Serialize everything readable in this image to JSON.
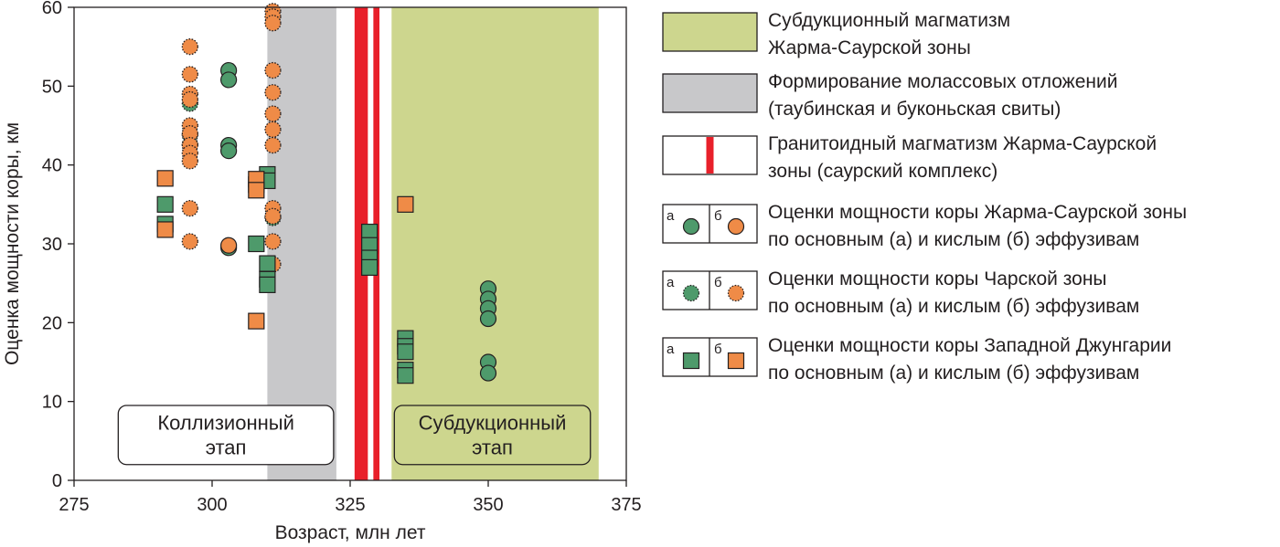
{
  "chart_data": {
    "type": "scatter",
    "xlabel": "Возраст, млн лет",
    "ylabel": "Оценка мощности коры, км",
    "xlim": [
      275,
      375
    ],
    "ylim": [
      0,
      60
    ],
    "xticks": [
      275,
      300,
      325,
      350,
      375
    ],
    "yticks": [
      0,
      10,
      20,
      30,
      40,
      50,
      60
    ],
    "grid": false,
    "legend_position": "right",
    "bands": [
      {
        "name": "molasse",
        "x_start": 310,
        "x_end": 322.5,
        "color": "#c8c8ca"
      },
      {
        "name": "subduction",
        "x_start": 332.5,
        "x_end": 370,
        "color": "#cdd68e"
      },
      {
        "name": "granitoid-1",
        "x_start": 325.8,
        "x_end": 328.2,
        "color": "#e8202a"
      },
      {
        "name": "granitoid-2",
        "x_start": 329.2,
        "x_end": 330.3,
        "color": "#e8202a"
      }
    ],
    "stage_labels": [
      {
        "text": "Коллизионный этап",
        "x_start": 283,
        "x_end": 322,
        "y_start": 2,
        "y_end": 9.5,
        "fill": "#ffffff"
      },
      {
        "text": "Субдукционный этап",
        "x_start": 333,
        "x_end": 368.5,
        "y_start": 2,
        "y_end": 9.5,
        "fill": "#cdd68e"
      }
    ],
    "colors": {
      "basic": "#4e9a6b",
      "acid": "#ef8b47",
      "red": "#e8202a",
      "molasse": "#c8c8ca",
      "subduction": "#cdd68e"
    },
    "series": [
      {
        "name": "Жарма-Саурская зона, основные (а)",
        "marker": "circle",
        "fill": "#4e9a6b",
        "outline": "solid",
        "points": [
          [
            303,
            52
          ],
          [
            303,
            50.8
          ],
          [
            303,
            42.5
          ],
          [
            303,
            41.8
          ],
          [
            303,
            29.5
          ],
          [
            350,
            24.3
          ],
          [
            350,
            23
          ],
          [
            350,
            21.8
          ],
          [
            350,
            20.5
          ],
          [
            350,
            15
          ],
          [
            350,
            13.6
          ]
        ]
      },
      {
        "name": "Жарма-Саурская зона, кислые (б)",
        "marker": "circle",
        "fill": "#ef8b47",
        "outline": "solid",
        "points": [
          [
            303,
            29.8
          ]
        ]
      },
      {
        "name": "Чарская зона, основные (а)",
        "marker": "circle",
        "fill": "#4e9a6b",
        "outline": "dotted",
        "points": [
          [
            296,
            47.8
          ],
          [
            296,
            43.8
          ],
          [
            296,
            42.6
          ],
          [
            311,
            33.3
          ]
        ]
      },
      {
        "name": "Чарская зона, кислые (б)",
        "marker": "circle",
        "fill": "#ef8b47",
        "outline": "dotted",
        "points": [
          [
            296,
            55
          ],
          [
            296,
            51.5
          ],
          [
            296,
            49
          ],
          [
            296,
            48.3
          ],
          [
            296,
            45
          ],
          [
            296,
            44
          ],
          [
            296,
            42.5
          ],
          [
            296,
            41.5
          ],
          [
            296,
            40.5
          ],
          [
            296,
            34.5
          ],
          [
            296,
            30.3
          ],
          [
            311,
            59.5
          ],
          [
            311,
            58.8
          ],
          [
            311,
            58
          ],
          [
            311,
            52
          ],
          [
            311,
            49.2
          ],
          [
            311,
            46.5
          ],
          [
            311,
            44.5
          ],
          [
            311,
            42.5
          ],
          [
            311,
            34.5
          ],
          [
            311,
            33.5
          ],
          [
            311,
            30.3
          ],
          [
            311,
            27.4
          ]
        ]
      },
      {
        "name": "Западная Джунгария, основные (а)",
        "marker": "square",
        "fill": "#4e9a6b",
        "outline": "solid",
        "points": [
          [
            291.5,
            35
          ],
          [
            291.5,
            32.5
          ],
          [
            308,
            37.5
          ],
          [
            308,
            30
          ],
          [
            310,
            38.8
          ],
          [
            310,
            38
          ],
          [
            310,
            27.5
          ],
          [
            310,
            25.5
          ],
          [
            310,
            24.8
          ],
          [
            328.5,
            31.5
          ],
          [
            328.5,
            29.8
          ],
          [
            328.5,
            28.2
          ],
          [
            328.5,
            27
          ],
          [
            335,
            18
          ],
          [
            335,
            17
          ],
          [
            335,
            16.3
          ],
          [
            335,
            14
          ],
          [
            335,
            13.3
          ]
        ]
      },
      {
        "name": "Западная Джунгария, кислые (б)",
        "marker": "square",
        "fill": "#ef8b47",
        "outline": "solid",
        "points": [
          [
            291.5,
            38.3
          ],
          [
            291.5,
            31.8
          ],
          [
            308,
            38.2
          ],
          [
            308,
            36.8
          ],
          [
            308,
            20.2
          ],
          [
            335,
            35
          ]
        ]
      }
    ]
  },
  "legend": [
    {
      "swatch": "band-green",
      "lines": [
        "Субдукционный магматизм",
        "Жарма-Саурской зоны"
      ]
    },
    {
      "swatch": "band-gray",
      "lines": [
        "Формирование молассовых отложений",
        "(таубинская и буконьская свиты)"
      ]
    },
    {
      "swatch": "red-line",
      "lines": [
        "Гранитоидный магматизм Жарма-Саурской",
        "зоны (саурский комплекс)"
      ]
    },
    {
      "swatch": "circles-solid",
      "label_a": "а",
      "label_b": "б",
      "lines": [
        "Оценки мощности коры Жарма-Саурской зоны",
        "по основным (а) и кислым (б) эффузивам"
      ]
    },
    {
      "swatch": "circles-dotted",
      "label_a": "а",
      "label_b": "б",
      "lines": [
        "Оценки мощности коры Чарской зоны",
        "по основным (а) и кислым (б) эффузивам"
      ]
    },
    {
      "swatch": "squares",
      "label_a": "а",
      "label_b": "б",
      "lines": [
        "Оценки мощности коры Западной Джунгарии",
        "по основным (а) и кислым (б) эффузивам"
      ]
    }
  ]
}
